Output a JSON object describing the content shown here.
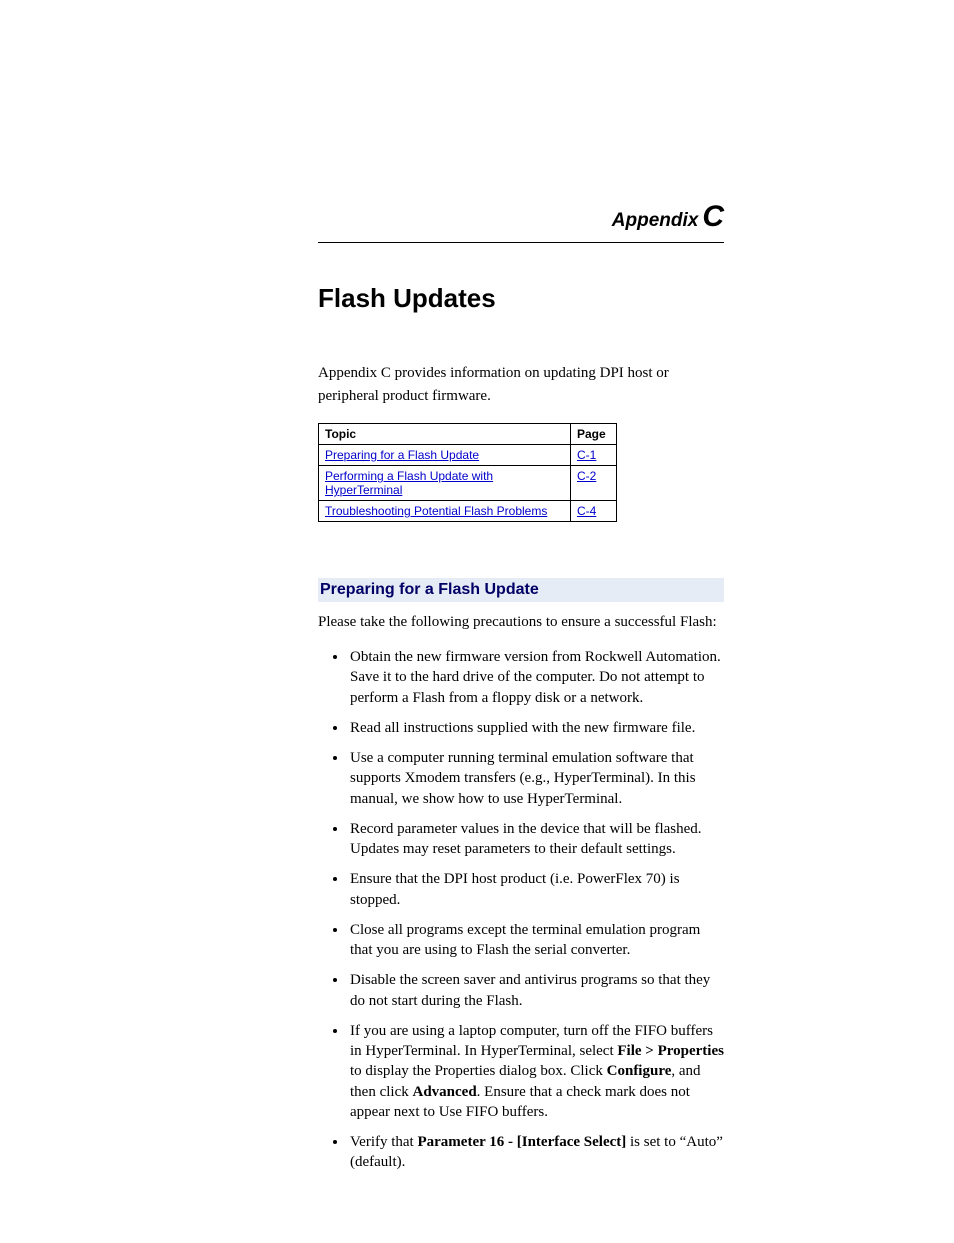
{
  "header": {
    "appendix_word": "Appendix",
    "appendix_letter": "C"
  },
  "title": "Flash Updates",
  "intro": "Appendix C provides information on updating DPI host or peripheral product firmware.",
  "toc": {
    "col_topic": "Topic",
    "col_page": "Page",
    "rows": [
      {
        "topic": "Preparing for a Flash Update",
        "page": "C-1"
      },
      {
        "topic": "Performing a Flash Update with HyperTerminal",
        "page": "C-2"
      },
      {
        "topic": "Troubleshooting Potential Flash Problems",
        "page": "C-4"
      }
    ]
  },
  "section": {
    "heading": "Preparing for a Flash Update",
    "intro": "Please take the following precautions to ensure a successful Flash:",
    "bullets": {
      "b0": "Obtain the new firmware version from Rockwell Automation. Save it to the hard drive of the computer. Do not attempt to perform a Flash from a floppy disk or a network.",
      "b1": "Read all instructions supplied with the new firmware file.",
      "b2": "Use a computer running terminal emulation software that supports Xmodem transfers (e.g., HyperTerminal). In this manual, we show how to use HyperTerminal.",
      "b3": "Record parameter values in the device that will be flashed. Updates may reset parameters to their default settings.",
      "b4": "Ensure that the DPI host product (i.e. PowerFlex 70) is stopped.",
      "b5": "Close all programs except the terminal emulation program that you are using to Flash the serial converter.",
      "b6": "Disable the screen saver and antivirus programs so that they do not start during the Flash.",
      "b7_pre": "If you are using a laptop computer, turn off the FIFO buffers in HyperTerminal. In HyperTerminal, select ",
      "b7_bold1": "File > Properties",
      "b7_mid1": " to display the Properties dialog box. Click ",
      "b7_bold2": "Configure",
      "b7_mid2": ", and then click ",
      "b7_bold3": "Advanced",
      "b7_post": ". Ensure that a check mark does not appear next to Use FIFO buffers.",
      "b8_pre": "Verify that ",
      "b8_bold": "Parameter 16 - [Interface Select]",
      "b8_post": " is set to “Auto” (default)."
    }
  }
}
